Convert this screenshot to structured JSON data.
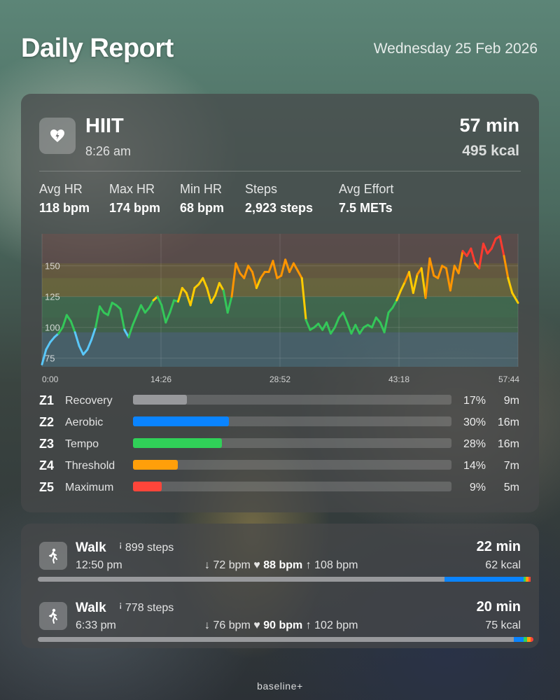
{
  "header": {
    "title": "Daily Report",
    "date": "Wednesday 25 Feb 2026"
  },
  "workout": {
    "icon": "heart-bolt-icon",
    "name": "HIIT",
    "start_time": "8:26 am",
    "duration": "57 min",
    "calories": "495 kcal",
    "stats": [
      {
        "label": "Avg HR",
        "value": "118 bpm"
      },
      {
        "label": "Max HR",
        "value": "174 bpm"
      },
      {
        "label": "Min HR",
        "value": "68 bpm"
      },
      {
        "label": "Steps",
        "value": "2,923 steps"
      },
      {
        "label": "Avg Effort",
        "value": "7.5 METs"
      }
    ]
  },
  "chart_data": {
    "type": "line",
    "title": "",
    "xlabel": "",
    "ylabel": "",
    "x_tick_labels": [
      "0:00",
      "14:26",
      "28:52",
      "43:18",
      "57:44"
    ],
    "y_ticks": [
      75,
      100,
      125,
      150
    ],
    "xlim_minutes": [
      0,
      57.7
    ],
    "ylim": [
      68,
      176
    ],
    "grid": true,
    "series": [
      {
        "x_minutes": [
          0,
          0.5,
          1,
          1.5,
          2,
          2.5,
          3,
          3.5,
          4,
          4.5,
          5,
          5.5,
          6,
          6.5,
          7,
          7.5,
          8,
          8.5,
          9,
          9.5,
          10,
          10.5,
          11,
          11.5,
          12,
          12.5,
          13,
          13.5,
          14,
          14.5,
          15,
          15.5,
          16,
          16.5,
          17,
          17.5,
          18,
          18.5,
          19,
          19.5,
          20,
          20.5,
          21,
          21.5,
          22,
          22.5,
          23,
          23.5,
          24,
          24.5,
          25,
          25.5,
          26,
          26.5,
          27,
          27.5,
          28,
          28.5,
          29,
          29.5,
          30,
          30.5,
          31,
          31.5,
          32,
          32.5,
          33,
          33.5,
          34,
          34.5,
          35,
          35.5,
          36,
          36.5,
          37,
          37.5,
          38,
          38.5,
          39,
          39.5,
          40,
          40.5,
          41,
          41.5,
          42,
          42.5,
          43,
          43.5,
          44,
          44.5,
          45,
          45.5,
          46,
          46.5,
          47,
          47.5,
          48,
          48.5,
          49,
          49.5,
          50,
          50.5,
          51,
          51.5,
          52,
          52.5,
          53,
          53.5,
          54,
          54.5,
          55,
          55.5,
          56,
          56.5,
          57,
          57.7
        ],
        "values": [
          70,
          82,
          88,
          92,
          95,
          100,
          110,
          105,
          96,
          85,
          78,
          82,
          90,
          100,
          117,
          112,
          110,
          120,
          118,
          115,
          98,
          92,
          102,
          110,
          118,
          112,
          116,
          122,
          125,
          118,
          104,
          112,
          122,
          121,
          132,
          128,
          118,
          132,
          135,
          140,
          132,
          120,
          126,
          136,
          130,
          112,
          125,
          152,
          144,
          140,
          150,
          145,
          132,
          140,
          145,
          145,
          154,
          140,
          142,
          155,
          145,
          152,
          146,
          140,
          106,
          98,
          100,
          103,
          98,
          104,
          95,
          100,
          108,
          112,
          104,
          95,
          102,
          95,
          100,
          102,
          100,
          108,
          104,
          96,
          112,
          116,
          122,
          130,
          137,
          145,
          128,
          143,
          148,
          124,
          156,
          142,
          140,
          150,
          148,
          130,
          150,
          144,
          162,
          158,
          164,
          152,
          148,
          168,
          160,
          164,
          172,
          174,
          158,
          140,
          128,
          120
        ]
      }
    ],
    "zone_colors": {
      "z1": "#5ac8fa",
      "z2": "#34c759",
      "z3": "#ffcc00",
      "z4": "#ff9500",
      "z5": "#ff3b30"
    }
  },
  "zones": [
    {
      "code": "Z1",
      "name": "Recovery",
      "percent_text": "17%",
      "minutes_text": "9m",
      "fill_fraction": 0.17,
      "color": "#98999c"
    },
    {
      "code": "Z2",
      "name": "Aerobic",
      "percent_text": "30%",
      "minutes_text": "16m",
      "fill_fraction": 0.3,
      "color": "#0a84ff"
    },
    {
      "code": "Z3",
      "name": "Tempo",
      "percent_text": "28%",
      "minutes_text": "16m",
      "fill_fraction": 0.28,
      "color": "#30d158"
    },
    {
      "code": "Z4",
      "name": "Threshold",
      "percent_text": "14%",
      "minutes_text": "7m",
      "fill_fraction": 0.14,
      "color": "#ff9f0a"
    },
    {
      "code": "Z5",
      "name": "Maximum",
      "percent_text": "9%",
      "minutes_text": "5m",
      "fill_fraction": 0.09,
      "color": "#ff453a"
    }
  ],
  "walks": [
    {
      "icon": "walking-figure-icon",
      "name": "Walk",
      "steps_icon": "footprints-icon",
      "steps": "899 steps",
      "start_time": "12:50 pm",
      "min_hr": "72 bpm",
      "avg_hr": "88 bpm",
      "max_hr": "108 bpm",
      "duration": "22 min",
      "calories": "62 kcal",
      "zone_split": [
        {
          "fraction": 0.82,
          "color": "#98999c"
        },
        {
          "fraction": 0.16,
          "color": "#0a84ff"
        },
        {
          "fraction": 0.005,
          "color": "#30d158"
        },
        {
          "fraction": 0.005,
          "color": "#ff9f0a"
        },
        {
          "fraction": 0.005,
          "color": "#ff453a"
        }
      ]
    },
    {
      "icon": "walking-figure-icon",
      "name": "Walk",
      "steps_icon": "footprints-icon",
      "steps": "778 steps",
      "start_time": "6:33 pm",
      "min_hr": "76 bpm",
      "avg_hr": "90 bpm",
      "max_hr": "102 bpm",
      "duration": "20 min",
      "calories": "75 kcal",
      "zone_split": [
        {
          "fraction": 0.96,
          "color": "#98999c"
        },
        {
          "fraction": 0.02,
          "color": "#0a84ff"
        },
        {
          "fraction": 0.007,
          "color": "#30d158"
        },
        {
          "fraction": 0.007,
          "color": "#ff9f0a"
        },
        {
          "fraction": 0.006,
          "color": "#ff453a"
        }
      ]
    }
  ],
  "footer": {
    "brand": "baseline+"
  }
}
